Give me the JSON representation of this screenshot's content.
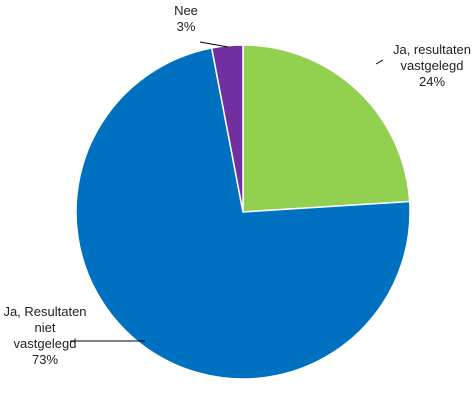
{
  "chart_data": {
    "type": "pie",
    "slices": [
      {
        "label_lines": [
          "Ja, resultaten",
          "vastgelegd"
        ],
        "value": 24,
        "value_label": "24%",
        "color": "#92d050"
      },
      {
        "label_lines": [
          "Ja, Resultaten",
          "niet",
          "vastgelegd"
        ],
        "value": 73,
        "value_label": "73%",
        "color": "#0070c0"
      },
      {
        "label_lines": [
          "Nee"
        ],
        "value": 3,
        "value_label": "3%",
        "color": "#7030a0"
      }
    ],
    "start_angle_deg": 0,
    "direction": "clockwise"
  }
}
